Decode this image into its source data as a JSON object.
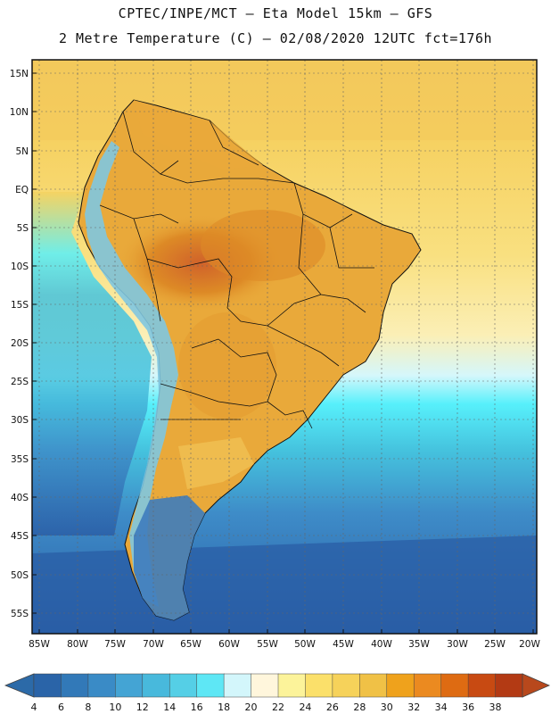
{
  "header": {
    "line1": "CPTEC/INPE/MCT –  Eta Model 15km – GFS",
    "line2": "2 Metre Temperature (C) – 02/08/2020 12UTC fct=176h"
  },
  "map": {
    "lat_labels": [
      "15N",
      "10N",
      "5N",
      "EQ",
      "5S",
      "10S",
      "15S",
      "20S",
      "25S",
      "30S",
      "35S",
      "40S",
      "45S",
      "50S",
      "55S"
    ],
    "lon_labels": [
      "85W",
      "80W",
      "75W",
      "70W",
      "65W",
      "60W",
      "55W",
      "50W",
      "45W",
      "40W",
      "35W",
      "30W",
      "25W",
      "20W"
    ],
    "colors": {
      "deep_ocean": "#2a5ea6",
      "mid_ocean": "#3e8cc8",
      "cool_ocean": "#45c3de",
      "cyan_band": "#57f0fb",
      "pale_band": "#d5f7fb",
      "warm_ocean": "#fbefb6",
      "tropic_ocean": "#f8dc72",
      "gold_ocean": "#f3c95b",
      "land_warm": "#e9a93a",
      "land_hot": "#dd8a26",
      "land_hottest": "#d2672a",
      "andes_cold": "#7fc6e0",
      "patagonia": "#3e7cbd",
      "border": "#111111"
    }
  },
  "colorbar": {
    "labels": [
      "4",
      "6",
      "8",
      "10",
      "12",
      "14",
      "16",
      "18",
      "20",
      "22",
      "24",
      "26",
      "28",
      "30",
      "32",
      "34",
      "36",
      "38"
    ],
    "colors": [
      "#2a64a8",
      "#3279b8",
      "#3a8bc6",
      "#44a4d4",
      "#48b9dc",
      "#55cfe6",
      "#5ee7f5",
      "#d3f6fb",
      "#fff6dc",
      "#fcf39a",
      "#fbe06a",
      "#f6d25a",
      "#f0c146",
      "#efa21c",
      "#eb8a20",
      "#de6b12",
      "#c84a12",
      "#b33a14"
    ],
    "low_arrow": "#2c6aa8",
    "high_arrow": "#b8481c"
  }
}
